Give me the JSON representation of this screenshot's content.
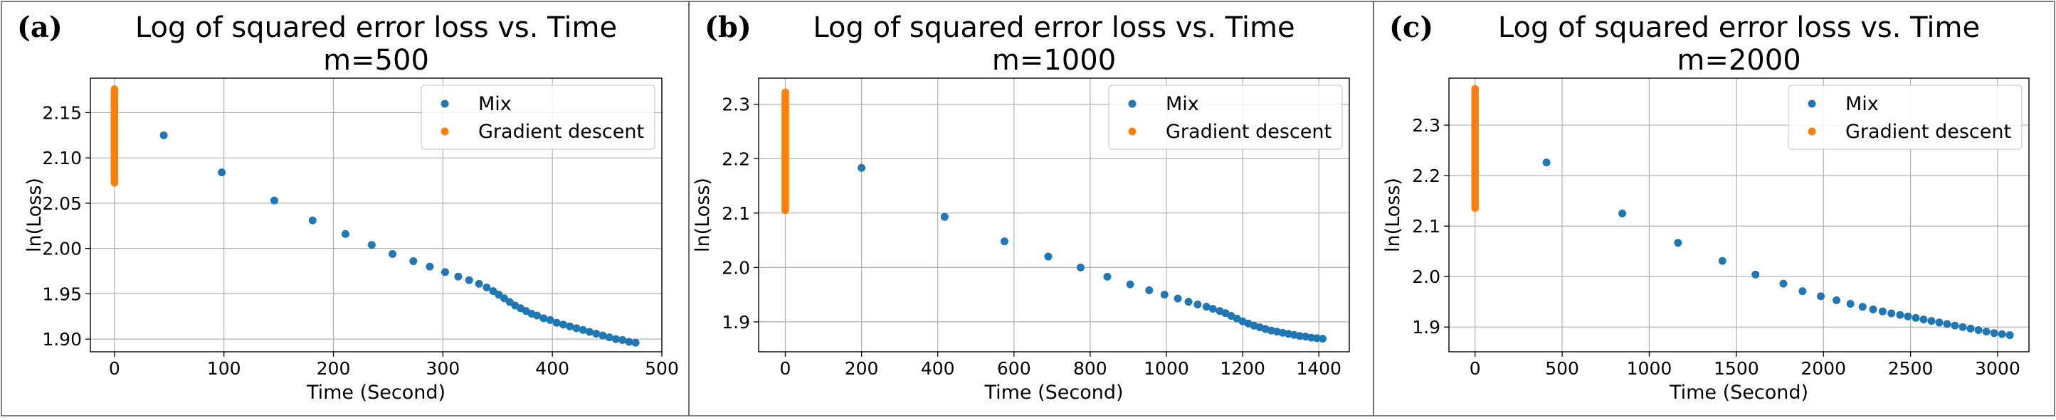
{
  "colors": {
    "mix": "#1f77b4",
    "gd": "#ff7f0e",
    "grid": "#b0b0b0",
    "axis": "#000000"
  },
  "chart_data": [
    {
      "type": "scatter",
      "panel_label": "(a)",
      "title": "Log of squared error loss vs. Time",
      "subtitle": "m=500",
      "xlabel": "Time (Second)",
      "ylabel": "ln(Loss)",
      "xlim": [
        -22,
        500
      ],
      "ylim": [
        1.886,
        2.188
      ],
      "xticks": [
        0,
        100,
        200,
        300,
        400,
        500
      ],
      "yticks": [
        1.9,
        1.95,
        2.0,
        2.05,
        2.1,
        2.15
      ],
      "ytick_labels": [
        "1.90",
        "1.95",
        "2.00",
        "2.05",
        "2.10",
        "2.15"
      ],
      "grid": true,
      "legend": {
        "position": "top-right",
        "entries": [
          "Mix",
          "Gradient descent"
        ]
      },
      "series": [
        {
          "name": "Mix",
          "x": [
            45,
            98,
            146,
            181,
            211,
            235,
            254,
            273,
            288,
            302,
            314,
            324,
            333,
            340,
            346,
            351,
            356,
            361,
            366,
            371,
            376,
            381,
            386,
            392,
            398,
            404,
            410,
            416,
            422,
            428,
            434,
            440,
            446,
            452,
            458,
            464,
            470,
            476
          ],
          "y": [
            2.125,
            2.084,
            2.053,
            2.031,
            2.016,
            2.004,
            1.994,
            1.986,
            1.98,
            1.974,
            1.969,
            1.965,
            1.961,
            1.957,
            1.953,
            1.949,
            1.945,
            1.941,
            1.937,
            1.934,
            1.931,
            1.928,
            1.926,
            1.923,
            1.921,
            1.918,
            1.916,
            1.914,
            1.912,
            1.91,
            1.908,
            1.906,
            1.904,
            1.902,
            1.9,
            1.899,
            1.897,
            1.896
          ]
        },
        {
          "name": "Gradient descent",
          "x_value": 0,
          "y_range": [
            2.072,
            2.176
          ]
        }
      ]
    },
    {
      "type": "scatter",
      "panel_label": "(b)",
      "title": "Log of squared error loss vs. Time",
      "subtitle": "m=1000",
      "xlabel": "Time (Second)",
      "ylabel": "ln(Loss)",
      "xlim": [
        -70,
        1480
      ],
      "ylim": [
        1.845,
        2.348
      ],
      "xticks": [
        0,
        200,
        400,
        600,
        800,
        1000,
        1200,
        1400
      ],
      "yticks": [
        1.9,
        2.0,
        2.1,
        2.2,
        2.3
      ],
      "ytick_labels": [
        "1.9",
        "2.0",
        "2.1",
        "2.2",
        "2.3"
      ],
      "grid": true,
      "legend": {
        "position": "top-right",
        "entries": [
          "Mix",
          "Gradient descent"
        ]
      },
      "series": [
        {
          "name": "Mix",
          "x": [
            200,
            418,
            575,
            690,
            775,
            845,
            905,
            955,
            995,
            1030,
            1058,
            1082,
            1105,
            1122,
            1140,
            1155,
            1170,
            1185,
            1200,
            1215,
            1230,
            1245,
            1260,
            1275,
            1290,
            1305,
            1320,
            1335,
            1350,
            1365,
            1380,
            1395,
            1410
          ],
          "y": [
            2.183,
            2.093,
            2.048,
            2.02,
            2.0,
            1.983,
            1.969,
            1.958,
            1.95,
            1.943,
            1.937,
            1.932,
            1.928,
            1.924,
            1.92,
            1.916,
            1.911,
            1.906,
            1.901,
            1.897,
            1.893,
            1.89,
            1.887,
            1.884,
            1.882,
            1.88,
            1.878,
            1.876,
            1.874,
            1.873,
            1.871,
            1.87,
            1.869
          ]
        },
        {
          "name": "Gradient descent",
          "x_value": 0,
          "y_range": [
            2.105,
            2.322
          ]
        }
      ]
    },
    {
      "type": "scatter",
      "panel_label": "(c)",
      "title": "Log of squared error loss vs. Time",
      "subtitle": "m=2000",
      "xlabel": "Time (Second)",
      "ylabel": "ln(Loss)",
      "xlim": [
        -150,
        3180
      ],
      "ylim": [
        1.851,
        2.393
      ],
      "xticks": [
        0,
        500,
        1000,
        1500,
        2000,
        2500,
        3000
      ],
      "yticks": [
        1.9,
        2.0,
        2.1,
        2.2,
        2.3
      ],
      "ytick_labels": [
        "1.9",
        "2.0",
        "2.1",
        "2.2",
        "2.3"
      ],
      "grid": true,
      "legend": {
        "position": "top-right",
        "entries": [
          "Mix",
          "Gradient descent"
        ]
      },
      "series": [
        {
          "name": "Mix",
          "x": [
            410,
            845,
            1165,
            1420,
            1610,
            1770,
            1880,
            1985,
            2075,
            2155,
            2225,
            2285,
            2340,
            2390,
            2440,
            2485,
            2530,
            2575,
            2620,
            2665,
            2710,
            2755,
            2800,
            2845,
            2890,
            2935,
            2980,
            3025,
            3070
          ],
          "y": [
            2.226,
            2.125,
            2.067,
            2.031,
            2.004,
            1.986,
            1.971,
            1.961,
            1.953,
            1.946,
            1.94,
            1.935,
            1.931,
            1.927,
            1.924,
            1.921,
            1.918,
            1.915,
            1.912,
            1.909,
            1.906,
            1.903,
            1.9,
            1.897,
            1.894,
            1.891,
            1.888,
            1.886,
            1.884
          ]
        },
        {
          "name": "Gradient descent",
          "x_value": 0,
          "y_range": [
            2.135,
            2.372
          ]
        }
      ]
    }
  ]
}
